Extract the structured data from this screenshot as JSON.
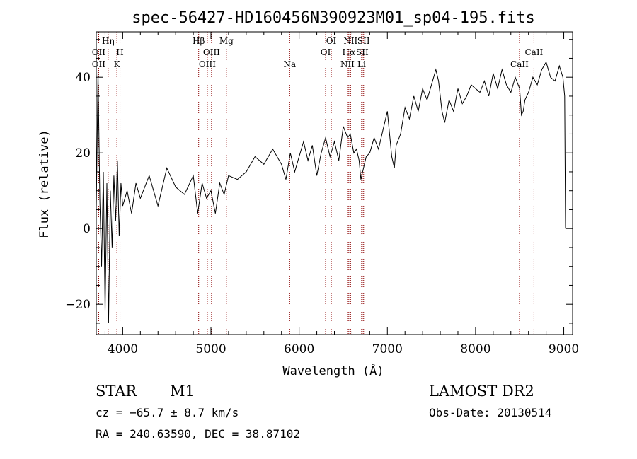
{
  "chart_data": {
    "type": "line",
    "title": "spec-56427-HD160456N390923M01_sp04-195.fits",
    "xlabel": "Wavelength (Å)",
    "ylabel": "Flux (relative)",
    "xlim": [
      3700,
      9100
    ],
    "ylim": [
      -28,
      52
    ],
    "xticks": [
      4000,
      5000,
      6000,
      7000,
      8000,
      9000
    ],
    "yticks": [
      -20,
      0,
      20,
      40
    ],
    "series": [
      {
        "x": [
          3700,
          3720,
          3740,
          3760,
          3780,
          3800,
          3820,
          3840,
          3860,
          3880,
          3900,
          3920,
          3940,
          3960,
          3980,
          4000,
          4050,
          4100,
          4150,
          4200,
          4300,
          4400,
          4500,
          4600,
          4700,
          4800,
          4850,
          4900,
          4950,
          5000,
          5050,
          5100,
          5150,
          5200,
          5300,
          5400,
          5500,
          5600,
          5700,
          5800,
          5850,
          5900,
          5950,
          6000,
          6050,
          6100,
          6150,
          6200,
          6250,
          6300,
          6350,
          6400,
          6450,
          6500,
          6550,
          6580,
          6620,
          6650,
          6680,
          6700,
          6730,
          6760,
          6800,
          6850,
          6900,
          6950,
          7000,
          7050,
          7080,
          7100,
          7150,
          7200,
          7250,
          7300,
          7350,
          7400,
          7450,
          7500,
          7550,
          7580,
          7620,
          7650,
          7700,
          7750,
          7800,
          7850,
          7900,
          7950,
          8000,
          8050,
          8100,
          8150,
          8200,
          8250,
          8300,
          8350,
          8400,
          8450,
          8500,
          8520,
          8540,
          8560,
          8600,
          8650,
          8700,
          8750,
          8800,
          8850,
          8900,
          8950,
          8990,
          9010,
          9020
        ],
        "y": [
          5,
          42,
          8,
          -10,
          15,
          -22,
          12,
          -25,
          10,
          -5,
          14,
          2,
          18,
          -2,
          12,
          6,
          10,
          4,
          12,
          8,
          14,
          6,
          16,
          11,
          9,
          14,
          4,
          12,
          8,
          10,
          4,
          12,
          9,
          14,
          13,
          15,
          19,
          17,
          21,
          17,
          13,
          20,
          15,
          19,
          23,
          18,
          22,
          14,
          20,
          24,
          19,
          23,
          18,
          27,
          24,
          25,
          20,
          21,
          18,
          13,
          16,
          19,
          20,
          24,
          21,
          26,
          31,
          19,
          16,
          22,
          25,
          32,
          29,
          35,
          31,
          37,
          34,
          38,
          42,
          39,
          31,
          28,
          34,
          31,
          37,
          33,
          35,
          38,
          37,
          36,
          39,
          35,
          41,
          37,
          42,
          38,
          36,
          40,
          37,
          30,
          31,
          34,
          36,
          40,
          38,
          42,
          44,
          40,
          39,
          43,
          40,
          35,
          0
        ]
      }
    ],
    "lines": [
      {
        "x": 3727,
        "label": "OII",
        "row": 2
      },
      {
        "x": 3727,
        "label": "OII",
        "row": 3
      },
      {
        "x": 3835,
        "label": "Hη",
        "row": 1
      },
      {
        "x": 3934,
        "label": "K",
        "row": 3
      },
      {
        "x": 3969,
        "label": "H",
        "row": 2
      },
      {
        "x": 4861,
        "label": "Hβ",
        "row": 1
      },
      {
        "x": 4959,
        "label": "OIII",
        "row": 3
      },
      {
        "x": 5007,
        "label": "OIII",
        "row": 2
      },
      {
        "x": 5175,
        "label": "Mg",
        "row": 1
      },
      {
        "x": 5893,
        "label": "Na",
        "row": 3
      },
      {
        "x": 6300,
        "label": "OI",
        "row": 2
      },
      {
        "x": 6364,
        "label": "OI",
        "row": 1
      },
      {
        "x": 6548,
        "label": "NII",
        "row": 3
      },
      {
        "x": 6563,
        "label": "Hα",
        "row": 2
      },
      {
        "x": 6583,
        "label": "NII",
        "row": 1
      },
      {
        "x": 6708,
        "label": "Li",
        "row": 3
      },
      {
        "x": 6716,
        "label": "SII",
        "row": 2
      },
      {
        "x": 6731,
        "label": "SII",
        "row": 1
      },
      {
        "x": 8498,
        "label": "CaII",
        "row": 3
      },
      {
        "x": 8662,
        "label": "CaII",
        "row": 2
      }
    ],
    "grid": false,
    "legend": false
  },
  "info": {
    "class": "STAR",
    "subclass": "M1",
    "cz": "cz = −65.7 ± 8.7 km/s",
    "coords": "RA = 240.63590, DEC =  38.87102",
    "survey": "LAMOST DR2",
    "obsdate": "Obs-Date: 20130514"
  },
  "colors": {
    "spectrum": "#000000",
    "line_markers": "#8b0000"
  }
}
